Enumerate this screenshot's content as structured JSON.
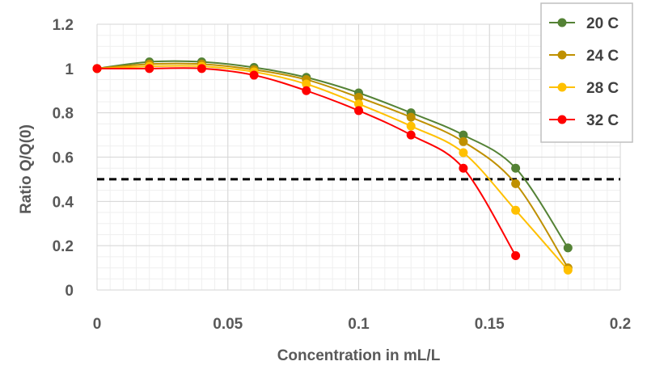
{
  "chart_data": {
    "type": "line",
    "xlabel": "Concentration in mL/L",
    "ylabel": "Ratio Q/Q(0)",
    "xlim": [
      0,
      0.2
    ],
    "ylim": [
      0,
      1.2
    ],
    "x_ticks": [
      "0",
      "0.05",
      "0.1",
      "0.15",
      "0.2"
    ],
    "y_ticks": [
      "0",
      "0.2",
      "0.4",
      "0.6",
      "0.8",
      "1",
      "1.2"
    ],
    "x_tick_values": [
      0,
      0.05,
      0.1,
      0.15,
      0.2
    ],
    "y_tick_values": [
      0,
      0.2,
      0.4,
      0.6,
      0.8,
      1.0,
      1.2
    ],
    "grid": true,
    "legend_position": "top-right",
    "reference_line": {
      "y": 0.5,
      "style": "dashed",
      "color": "#000000"
    },
    "series": [
      {
        "name": "20 C",
        "color": "#548235",
        "x": [
          0,
          0.02,
          0.04,
          0.06,
          0.08,
          0.1,
          0.12,
          0.14,
          0.16,
          0.18
        ],
        "y": [
          1.0,
          1.03,
          1.03,
          1.005,
          0.96,
          0.89,
          0.8,
          0.7,
          0.55,
          0.19
        ]
      },
      {
        "name": "24 C",
        "color": "#BF9000",
        "x": [
          0,
          0.02,
          0.04,
          0.06,
          0.08,
          0.1,
          0.12,
          0.14,
          0.16,
          0.18
        ],
        "y": [
          1.0,
          1.02,
          1.02,
          0.995,
          0.95,
          0.87,
          0.78,
          0.67,
          0.48,
          0.1
        ]
      },
      {
        "name": "28 C",
        "color": "#FFC000",
        "x": [
          0,
          0.02,
          0.04,
          0.06,
          0.08,
          0.1,
          0.12,
          0.14,
          0.16,
          0.18
        ],
        "y": [
          1.0,
          1.01,
          1.01,
          0.985,
          0.93,
          0.84,
          0.74,
          0.62,
          0.36,
          0.09
        ]
      },
      {
        "name": "32 C",
        "color": "#FF0000",
        "x": [
          0,
          0.02,
          0.04,
          0.06,
          0.08,
          0.1,
          0.12,
          0.14,
          0.16
        ],
        "y": [
          1.0,
          1.0,
          1.0,
          0.97,
          0.9,
          0.81,
          0.7,
          0.55,
          0.155
        ]
      }
    ]
  }
}
